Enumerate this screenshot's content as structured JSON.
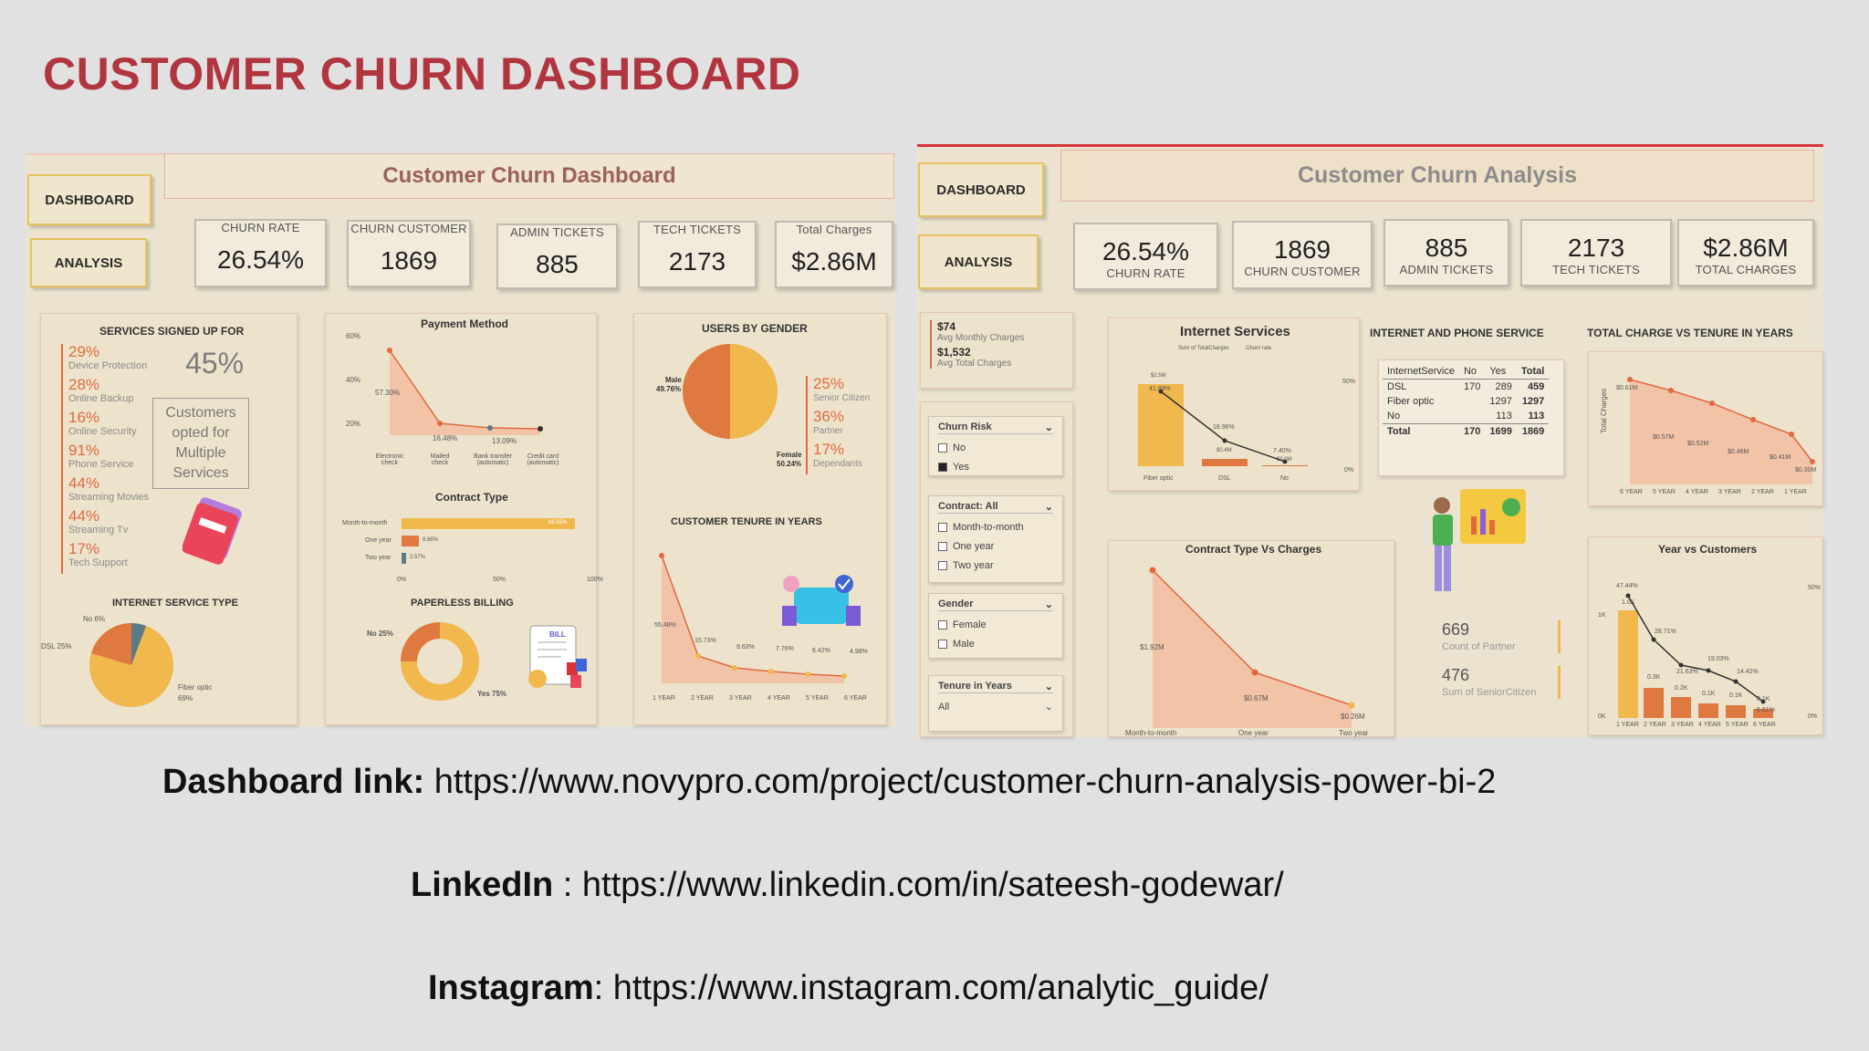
{
  "page": {
    "title": "CUSTOMER CHURN DASHBOARD"
  },
  "left": {
    "nav": {
      "dashboard": "DASHBOARD",
      "analysis": "ANALYSIS"
    },
    "header": "Customer Churn Dashboard",
    "kpis": [
      {
        "label": "CHURN RATE",
        "value": "26.54%"
      },
      {
        "label": "CHURN CUSTOMER",
        "value": "1869"
      },
      {
        "label": "ADMIN TICKETS",
        "value": "885"
      },
      {
        "label": "TECH TICKETS",
        "value": "2173"
      },
      {
        "label": "Total Charges",
        "value": "$2.86M"
      }
    ],
    "services": {
      "title": "SERVICES SIGNED UP FOR",
      "items": [
        {
          "pct": "29%",
          "name": "Device Protection"
        },
        {
          "pct": "28%",
          "name": "Online Backup"
        },
        {
          "pct": "16%",
          "name": "Online Security"
        },
        {
          "pct": "91%",
          "name": "Phone Service"
        },
        {
          "pct": "44%",
          "name": "Streaming Movies"
        },
        {
          "pct": "44%",
          "name": "Streaming Tv"
        },
        {
          "pct": "17%",
          "name": "Tech Support"
        }
      ],
      "big_pct": "45%",
      "note": "Customers opted for Multiple Services"
    },
    "internet_type": {
      "title": "INTERNET SERVICE TYPE",
      "no": "No 6%",
      "dsl": "DSL 25%",
      "fiber": "Fiber optic",
      "fiber_pct": "69%"
    },
    "payment": {
      "title": "Payment Method",
      "yticks": [
        "60%",
        "40%",
        "20%"
      ],
      "labels": [
        "57.30%",
        "16.48%",
        "13.09%"
      ],
      "categories": [
        "Electronic check",
        "Mailed check",
        "Bank transfer (automatic)",
        "Credit card (automatic)"
      ]
    },
    "contract": {
      "title": "Contract Type",
      "rows": [
        "Month-to-month",
        "One year",
        "Two year"
      ],
      "values": [
        "88.55%",
        "8.88%",
        "2.57%"
      ],
      "xticks": [
        "0%",
        "50%",
        "100%"
      ]
    },
    "paperless": {
      "title": "PAPERLESS BILLING",
      "no": "No 25%",
      "yes": "Yes 75%",
      "bill": "BILL"
    },
    "gender": {
      "title": "USERS BY GENDER",
      "male": "Male",
      "male_pct": "49.76%",
      "female": "Female",
      "female_pct": "50.24%",
      "stats": [
        {
          "pct": "25%",
          "name": "Senior Citizen"
        },
        {
          "pct": "36%",
          "name": "Partner"
        },
        {
          "pct": "17%",
          "name": "Dependants"
        }
      ]
    },
    "tenure": {
      "title": "CUSTOMER TENURE IN YEARS",
      "labels": [
        "55.48%",
        "15.73%",
        "9.63%",
        "7.76%",
        "6.42%",
        "4.98%"
      ],
      "xticks": [
        "1 YEAR",
        "2 YEAR",
        "3 YEAR",
        "4 YEAR",
        "5 YEAR",
        "6 YEAR"
      ]
    }
  },
  "right": {
    "nav": {
      "dashboard": "DASHBOARD",
      "analysis": "ANALYSIS"
    },
    "header": "Customer Churn Analysis",
    "kpis": [
      {
        "value": "26.54%",
        "label": "CHURN RATE"
      },
      {
        "value": "1869",
        "label": "CHURN CUSTOMER"
      },
      {
        "value": "885",
        "label": "ADMIN TICKETS"
      },
      {
        "value": "2173",
        "label": "TECH TICKETS"
      },
      {
        "value": "$2.86M",
        "label": "TOTAL CHARGES"
      }
    ],
    "avg": {
      "monthly": "$74",
      "monthly_label": "Avg Monthly Charges",
      "total": "$1,532",
      "total_label": "Avg Total Charges"
    },
    "filters": {
      "churn_risk": {
        "title": "Churn Risk",
        "options": [
          "No",
          "Yes"
        ]
      },
      "contract": {
        "title": "Contract: All",
        "options": [
          "Month-to-month",
          "One year",
          "Two year"
        ]
      },
      "gender": {
        "title": "Gender",
        "options": [
          "Female",
          "Male"
        ]
      },
      "tenure": {
        "title": "Tenure in Years",
        "value": "All"
      }
    },
    "internet_services": {
      "title": "Internet Services",
      "legend": [
        "Sum of TotalCharges",
        "Churn rate"
      ],
      "bar_labels": [
        "$2.5M",
        "$0.4M",
        "$0.0M"
      ],
      "rate_labels": [
        "41.89%",
        "18.96%",
        "7.40%"
      ],
      "categories": [
        "Fiber optic",
        "DSL",
        "No"
      ],
      "right_ticks": [
        "50%",
        "0%"
      ]
    },
    "ip_table": {
      "title": "INTERNET AND PHONE SERVICE",
      "header": [
        "InternetService",
        "No",
        "Yes",
        "Total"
      ],
      "rows": [
        [
          "DSL",
          "170",
          "289",
          "459"
        ],
        [
          "Fiber optic",
          "",
          "1297",
          "1297"
        ],
        [
          "No",
          "",
          "113",
          "113"
        ],
        [
          "Total",
          "170",
          "1699",
          "1869"
        ]
      ]
    },
    "charge_tenure": {
      "title": "TOTAL CHARGE VS TENURE IN YEARS",
      "ylabel": "Total Charges",
      "labels": [
        "$0.61M",
        "$0.57M",
        "$0.52M",
        "$0.46M",
        "$0.41M",
        "$0.30M"
      ],
      "xticks": [
        "6 YEAR",
        "5 YEAR",
        "4 YEAR",
        "3 YEAR",
        "2 YEAR",
        "1 YEAR"
      ]
    },
    "contract_charges": {
      "title": "Contract Type Vs Charges",
      "labels": [
        "$1.92M",
        "$0.67M",
        "$0.26M"
      ],
      "categories": [
        "Month-to-month",
        "One year",
        "Two year"
      ]
    },
    "partner": {
      "count": "669",
      "count_label": "Count of Partner",
      "senior": "476",
      "senior_label": "Sum of SeniorCitizen"
    },
    "year_customers": {
      "title": "Year vs Customers",
      "bar_labels": [
        "1.0K",
        "0.3K",
        "0.2K",
        "0.1K",
        "0.1K",
        "0.1K"
      ],
      "rate_labels": [
        "47.44%",
        "28.71%",
        "21.63%",
        "19.03%",
        "14.42%",
        "6.61%"
      ],
      "xticks": [
        "1 YEAR",
        "2 YEAR",
        "3 YEAR",
        "4 YEAR",
        "5 YEAR",
        "6 YEAR"
      ],
      "left_ticks": [
        "1K",
        "0K"
      ],
      "right_ticks": [
        "50%",
        "0%"
      ]
    }
  },
  "links": {
    "dashboard_label": "Dashboard link:",
    "dashboard_url": "https://www.novypro.com/project/customer-churn-analysis-power-bi-2",
    "linkedin_label": "LinkedIn",
    "linkedin_sep": " : ",
    "linkedin_url": "https://www.linkedin.com/in/sateesh-godewar/",
    "instagram_label": "Instagram",
    "instagram_sep": ": ",
    "instagram_url": "https://www.instagram.com/analytic_guide/"
  },
  "colors": {
    "title_red": "#b1353f",
    "orange": "#e0693f",
    "gold": "#f0b84d",
    "peach": "#f3c3a8",
    "panel": "#ebe3cf"
  }
}
